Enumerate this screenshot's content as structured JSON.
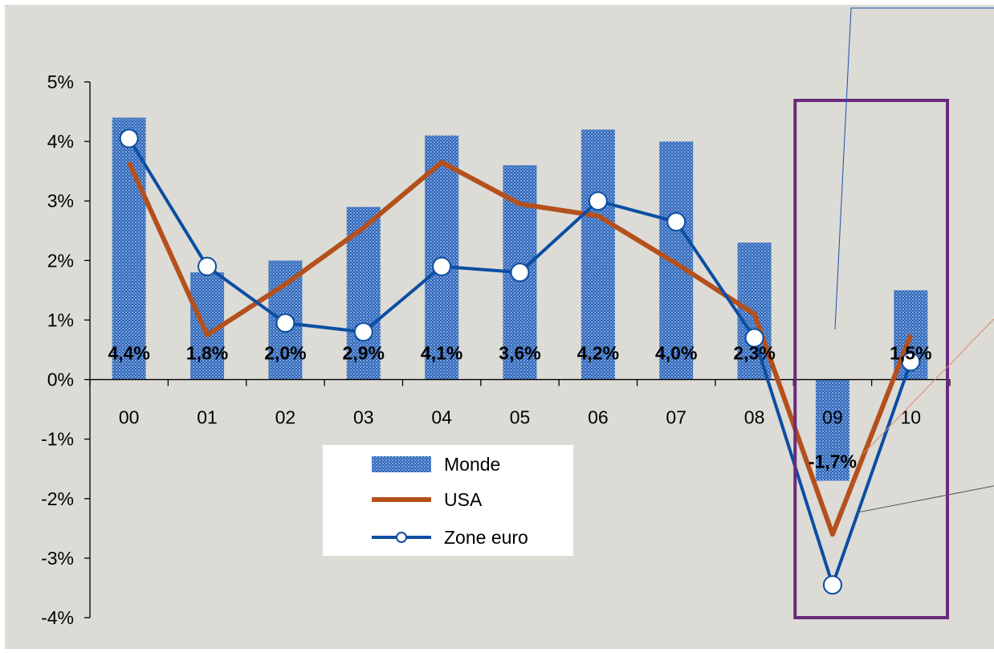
{
  "chart_data": {
    "type": "bar",
    "categories": [
      "00",
      "01",
      "02",
      "03",
      "04",
      "05",
      "06",
      "07",
      "08",
      "09",
      "10"
    ],
    "series": [
      {
        "name": "Monde",
        "type": "bar",
        "values": [
          4.4,
          1.8,
          2.0,
          2.9,
          4.1,
          3.6,
          4.2,
          4.0,
          2.3,
          -1.7,
          1.5
        ],
        "data_labels": [
          "4,4%",
          "1,8%",
          "2,0%",
          "2,9%",
          "4,1%",
          "3,6%",
          "4,2%",
          "4,0%",
          "2,3%",
          "-1,7%",
          "1,5%"
        ],
        "color": "#4a7fcf"
      },
      {
        "name": "USA",
        "type": "line",
        "values": [
          3.65,
          0.75,
          1.6,
          2.55,
          3.65,
          2.95,
          2.75,
          1.95,
          1.1,
          -2.6,
          0.75
        ],
        "color": "#b5501c"
      },
      {
        "name": "Zone euro",
        "type": "line",
        "marker": "circle",
        "values": [
          4.05,
          1.9,
          0.95,
          0.8,
          1.9,
          1.8,
          3.0,
          2.65,
          0.7,
          -3.45,
          0.3
        ],
        "color": "#0b4ea2"
      }
    ],
    "y_ticks": [
      "5%",
      "4%",
      "3%",
      "2%",
      "1%",
      "0%",
      "-1%",
      "-2%",
      "-3%",
      "-4%"
    ],
    "ylim": [
      -4,
      5
    ],
    "legend_position": "bottom-center",
    "highlight_category": "09",
    "colors": {
      "background": "#dcdbd6",
      "highlight_box": "#6a2a7a",
      "axis": "#000000"
    }
  }
}
